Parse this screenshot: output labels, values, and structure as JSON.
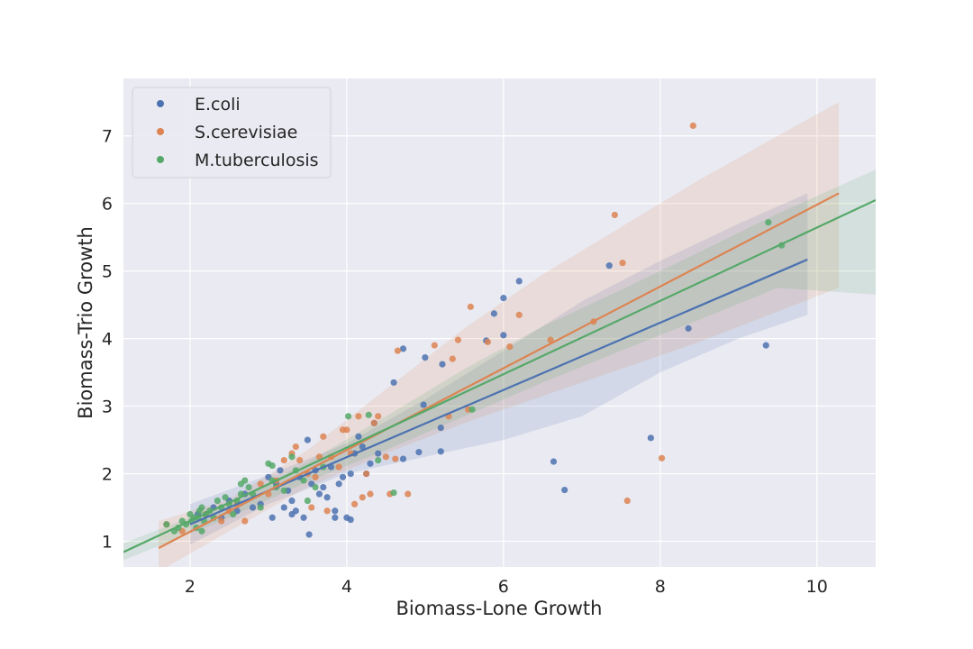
{
  "chart_data": {
    "type": "scatter",
    "title": "",
    "xlabel": "Biomass-Lone Growth",
    "ylabel": "Biomass-Trio Growth",
    "xlim": [
      1.15,
      10.75
    ],
    "ylim": [
      0.62,
      7.85
    ],
    "xticks": [
      2,
      4,
      6,
      8,
      10
    ],
    "yticks": [
      1,
      2,
      3,
      4,
      5,
      6,
      7
    ],
    "grid": true,
    "legend_position": "upper-left",
    "background": "#eaeaf2",
    "series": [
      {
        "name": "E.coli",
        "color": "#4c72b0",
        "fit": {
          "x": [
            2.0,
            9.88
          ],
          "y": [
            1.25,
            5.17
          ]
        },
        "band": {
          "x": [
            2.0,
            3.0,
            4.0,
            5.0,
            6.0,
            7.0,
            8.0,
            9.0,
            9.88
          ],
          "upper": [
            1.55,
            1.98,
            2.45,
            3.1,
            3.82,
            4.55,
            5.15,
            5.7,
            6.15
          ],
          "lower": [
            0.95,
            1.55,
            2.0,
            2.25,
            2.5,
            2.85,
            3.5,
            4.0,
            4.35
          ]
        },
        "points": [
          [
            2.1,
            1.4
          ],
          [
            2.3,
            1.5
          ],
          [
            2.5,
            1.6
          ],
          [
            2.7,
            1.7
          ],
          [
            2.9,
            1.55
          ],
          [
            3.0,
            1.95
          ],
          [
            3.1,
            1.85
          ],
          [
            3.15,
            2.05
          ],
          [
            3.2,
            1.5
          ],
          [
            3.25,
            1.75
          ],
          [
            3.3,
            1.6
          ],
          [
            3.35,
            1.45
          ],
          [
            3.4,
            1.95
          ],
          [
            3.5,
            2.5
          ],
          [
            3.55,
            1.85
          ],
          [
            3.6,
            2.05
          ],
          [
            3.65,
            1.7
          ],
          [
            3.7,
            1.8
          ],
          [
            3.75,
            1.65
          ],
          [
            3.8,
            2.1
          ],
          [
            3.85,
            1.45
          ],
          [
            3.9,
            1.85
          ],
          [
            3.95,
            1.95
          ],
          [
            4.0,
            1.35
          ],
          [
            4.05,
            2.0
          ],
          [
            4.1,
            2.3
          ],
          [
            4.15,
            2.55
          ],
          [
            4.2,
            2.4
          ],
          [
            4.3,
            2.15
          ],
          [
            4.35,
            2.75
          ],
          [
            4.4,
            2.3
          ],
          [
            3.52,
            1.1
          ],
          [
            3.05,
            1.35
          ],
          [
            3.3,
            1.4
          ],
          [
            3.85,
            1.35
          ],
          [
            4.05,
            1.32
          ],
          [
            4.6,
            3.35
          ],
          [
            4.72,
            3.85
          ],
          [
            4.72,
            2.22
          ],
          [
            4.92,
            2.32
          ],
          [
            4.98,
            3.02
          ],
          [
            5.0,
            3.72
          ],
          [
            5.22,
            3.62
          ],
          [
            5.2,
            2.33
          ],
          [
            5.2,
            2.68
          ],
          [
            5.78,
            3.97
          ],
          [
            5.88,
            4.37
          ],
          [
            6.0,
            4.6
          ],
          [
            6.0,
            4.05
          ],
          [
            6.2,
            4.85
          ],
          [
            6.64,
            2.18
          ],
          [
            6.78,
            1.76
          ],
          [
            7.35,
            5.08
          ],
          [
            7.88,
            2.53
          ],
          [
            8.36,
            4.15
          ],
          [
            9.35,
            3.9
          ],
          [
            2.4,
            1.35
          ],
          [
            2.6,
            1.45
          ],
          [
            2.8,
            1.5
          ],
          [
            3.45,
            1.35
          ],
          [
            4.25,
            2.0
          ]
        ]
      },
      {
        "name": "S.cerevisiae",
        "color": "#dd8452",
        "fit": {
          "x": [
            1.6,
            10.28
          ],
          "y": [
            0.9,
            6.15
          ]
        },
        "band": {
          "x": [
            1.6,
            2.5,
            3.5,
            4.5,
            5.5,
            6.5,
            7.5,
            8.5,
            9.5,
            10.28
          ],
          "upper": [
            1.3,
            1.62,
            2.35,
            3.25,
            4.15,
            4.95,
            5.65,
            6.35,
            7.0,
            7.5
          ],
          "lower": [
            0.55,
            1.15,
            1.8,
            2.3,
            2.75,
            3.15,
            3.55,
            3.95,
            4.4,
            4.75
          ]
        },
        "points": [
          [
            1.7,
            1.25
          ],
          [
            1.9,
            1.15
          ],
          [
            2.2,
            1.4
          ],
          [
            2.4,
            1.3
          ],
          [
            2.6,
            1.55
          ],
          [
            2.7,
            1.3
          ],
          [
            2.9,
            1.85
          ],
          [
            3.0,
            1.7
          ],
          [
            3.2,
            2.2
          ],
          [
            3.3,
            2.3
          ],
          [
            3.35,
            2.4
          ],
          [
            3.4,
            2.2
          ],
          [
            3.5,
            2.0
          ],
          [
            3.6,
            1.95
          ],
          [
            3.65,
            2.25
          ],
          [
            3.7,
            2.55
          ],
          [
            3.75,
            1.45
          ],
          [
            3.8,
            2.25
          ],
          [
            3.9,
            2.1
          ],
          [
            3.95,
            2.65
          ],
          [
            4.0,
            2.65
          ],
          [
            4.05,
            2.3
          ],
          [
            4.1,
            1.55
          ],
          [
            4.15,
            2.85
          ],
          [
            4.2,
            1.65
          ],
          [
            4.25,
            2.0
          ],
          [
            4.3,
            1.7
          ],
          [
            4.35,
            2.75
          ],
          [
            4.4,
            2.85
          ],
          [
            4.55,
            1.7
          ],
          [
            4.62,
            2.22
          ],
          [
            4.65,
            3.82
          ],
          [
            4.78,
            1.7
          ],
          [
            5.12,
            3.9
          ],
          [
            5.3,
            2.85
          ],
          [
            5.35,
            3.7
          ],
          [
            5.42,
            3.98
          ],
          [
            5.55,
            2.95
          ],
          [
            5.58,
            4.47
          ],
          [
            5.8,
            3.95
          ],
          [
            6.08,
            3.88
          ],
          [
            6.2,
            4.35
          ],
          [
            6.6,
            3.98
          ],
          [
            7.15,
            4.25
          ],
          [
            7.42,
            5.83
          ],
          [
            7.52,
            5.12
          ],
          [
            7.58,
            1.6
          ],
          [
            8.02,
            2.23
          ],
          [
            8.42,
            7.15
          ],
          [
            3.55,
            1.5
          ],
          [
            2.5,
            1.45
          ],
          [
            3.1,
            1.9
          ],
          [
            4.5,
            2.25
          ]
        ]
      },
      {
        "name": "M.tuberculosis",
        "color": "#55a868",
        "fit": {
          "x": [
            1.15,
            10.75
          ],
          "y": [
            0.84,
            6.05
          ]
        },
        "band": {
          "x": [
            1.15,
            2.5,
            3.5,
            4.5,
            5.5,
            6.5,
            7.5,
            8.5,
            9.5,
            10.75
          ],
          "upper": [
            0.97,
            1.58,
            2.17,
            2.85,
            3.55,
            4.18,
            4.72,
            5.28,
            5.85,
            6.5
          ],
          "lower": [
            0.72,
            1.35,
            1.88,
            2.35,
            2.85,
            3.35,
            3.82,
            4.28,
            4.75,
            4.65
          ]
        },
        "points": [
          [
            1.7,
            1.25
          ],
          [
            1.8,
            1.15
          ],
          [
            1.85,
            1.2
          ],
          [
            1.9,
            1.3
          ],
          [
            1.95,
            1.25
          ],
          [
            2.0,
            1.4
          ],
          [
            2.02,
            1.3
          ],
          [
            2.05,
            1.35
          ],
          [
            2.08,
            1.2
          ],
          [
            2.1,
            1.35
          ],
          [
            2.12,
            1.45
          ],
          [
            2.15,
            1.5
          ],
          [
            2.18,
            1.3
          ],
          [
            2.2,
            1.4
          ],
          [
            2.25,
            1.45
          ],
          [
            2.3,
            1.35
          ],
          [
            2.35,
            1.6
          ],
          [
            2.4,
            1.5
          ],
          [
            2.45,
            1.65
          ],
          [
            2.5,
            1.55
          ],
          [
            2.55,
            1.4
          ],
          [
            2.6,
            1.6
          ],
          [
            2.65,
            1.7
          ],
          [
            2.7,
            1.9
          ],
          [
            2.75,
            1.8
          ],
          [
            2.8,
            1.7
          ],
          [
            2.9,
            1.5
          ],
          [
            3.0,
            2.15
          ],
          [
            3.05,
            1.9
          ],
          [
            3.1,
            1.8
          ],
          [
            3.2,
            1.75
          ],
          [
            3.3,
            2.25
          ],
          [
            3.35,
            2.05
          ],
          [
            3.45,
            1.9
          ],
          [
            3.5,
            1.6
          ],
          [
            3.6,
            1.8
          ],
          [
            3.7,
            2.1
          ],
          [
            4.02,
            2.85
          ],
          [
            4.28,
            2.87
          ],
          [
            4.4,
            2.2
          ],
          [
            4.6,
            1.72
          ],
          [
            5.6,
            2.95
          ],
          [
            9.38,
            5.72
          ],
          [
            9.55,
            5.38
          ],
          [
            2.15,
            1.15
          ],
          [
            2.65,
            1.85
          ],
          [
            3.05,
            2.12
          ]
        ]
      }
    ]
  }
}
